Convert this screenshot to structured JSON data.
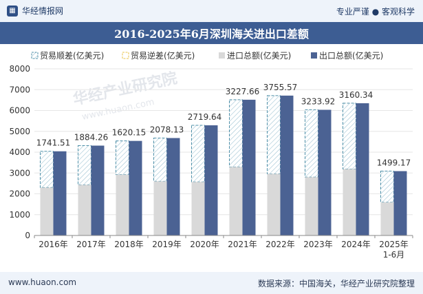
{
  "header": {
    "brand": "华经情报网",
    "tagline": "专业严谨 ● 客观科学"
  },
  "footer": {
    "site": "www.huaon.com",
    "source": "数据来源：中国海关，华经产业研究院整理"
  },
  "watermark": {
    "text": "华经产业研究院",
    "url": "www.huaon.com"
  },
  "colors": {
    "import": "#d9d9d9",
    "export": "#4b6293",
    "surplus_stroke": "#4d8fa8",
    "title_bg": "#3d5d93"
  },
  "chart_data": {
    "type": "bar",
    "title": "2016-2025年6月深圳海关进出口差额",
    "categories": [
      "2016年",
      "2017年",
      "2018年",
      "2019年",
      "2020年",
      "2021年",
      "2022年",
      "2023年",
      "2024年",
      "2025年"
    ],
    "category_sublabels": [
      "",
      "",
      "",
      "",
      "",
      "",
      "",
      "",
      "",
      "1-6月"
    ],
    "series": [
      {
        "name": "贸易顺差(亿美元)",
        "values": [
          1741.51,
          1884.26,
          1620.15,
          2078.13,
          2719.64,
          3227.66,
          3755.57,
          3233.92,
          3160.34,
          1499.17
        ]
      },
      {
        "name": "贸易逆差(亿美元)",
        "values": [
          0,
          0,
          0,
          0,
          0,
          0,
          0,
          0,
          0,
          0
        ]
      },
      {
        "name": "进口总额(亿美元)",
        "values": [
          2300,
          2430,
          2920,
          2600,
          2570,
          3290,
          2960,
          2800,
          3190,
          1590
        ]
      },
      {
        "name": "出口总额(亿美元)",
        "values": [
          4041.51,
          4314.26,
          4540.15,
          4678.13,
          5289.64,
          6517.66,
          6715.57,
          6033.92,
          6350.34,
          3089.17
        ]
      }
    ],
    "data_labels": [
      "1741.51",
      "1884.26",
      "1620.15",
      "2078.13",
      "2719.64",
      "3227.66",
      "3755.57",
      "3233.92",
      "3160.34",
      "1499.17"
    ],
    "yticks": [
      "0",
      "1000",
      "2000",
      "3000",
      "4000",
      "5000",
      "6000",
      "7000",
      "8000"
    ],
    "ylim": [
      0,
      8000
    ],
    "xlabel": "",
    "ylabel": "",
    "legend_position": "top"
  }
}
